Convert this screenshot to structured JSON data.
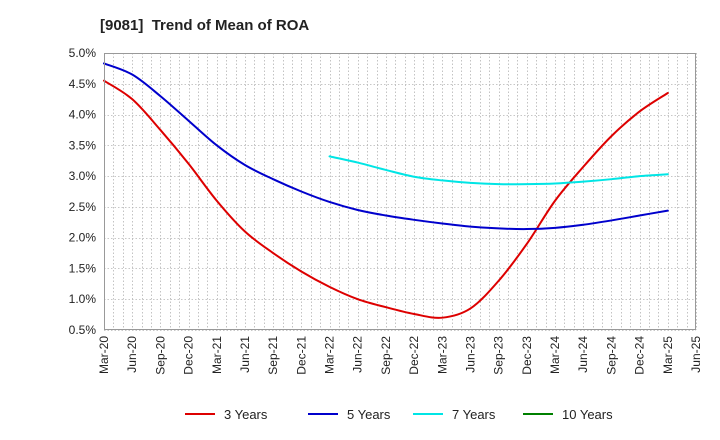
{
  "chart_data": {
    "type": "line",
    "title": "[9081]  Trend of Mean of ROA",
    "xlabel": "",
    "ylabel": "",
    "ylim": [
      0.5,
      5.0
    ],
    "yticks": [
      0.5,
      1.0,
      1.5,
      2.0,
      2.5,
      3.0,
      3.5,
      4.0,
      4.5,
      5.0
    ],
    "ytick_labels": [
      "0.5%",
      "1.0%",
      "1.5%",
      "2.0%",
      "2.5%",
      "3.0%",
      "3.5%",
      "4.0%",
      "4.5%",
      "5.0%"
    ],
    "x_start": "Mar-20",
    "x_end": "Jun-25",
    "categories": [
      "Mar-20",
      "Jun-20",
      "Sep-20",
      "Dec-20",
      "Mar-21",
      "Jun-21",
      "Sep-21",
      "Dec-21",
      "Mar-22",
      "Jun-22",
      "Sep-22",
      "Dec-22",
      "Mar-23",
      "Jun-23",
      "Sep-23",
      "Dec-23",
      "Mar-24",
      "Jun-24",
      "Sep-24",
      "Dec-24",
      "Mar-25",
      "Jun-25"
    ],
    "grid": true,
    "legend_position": "bottom",
    "series": [
      {
        "name": "3 Years",
        "color": "#dd0000",
        "x": [
          "Mar-20",
          "Jun-20",
          "Sep-20",
          "Dec-20",
          "Mar-21",
          "Jun-21",
          "Sep-21",
          "Dec-21",
          "Mar-22",
          "Jun-22",
          "Sep-22",
          "Dec-22",
          "Mar-23",
          "Jun-23",
          "Sep-23",
          "Dec-23",
          "Mar-24",
          "Jun-24",
          "Sep-24",
          "Dec-24",
          "Mar-25"
        ],
        "values": [
          4.55,
          4.25,
          3.75,
          3.2,
          2.6,
          2.1,
          1.75,
          1.45,
          1.2,
          1.0,
          0.87,
          0.76,
          0.7,
          0.85,
          1.3,
          1.9,
          2.6,
          3.15,
          3.65,
          4.05,
          4.35
        ]
      },
      {
        "name": "5 Years",
        "color": "#0000cc",
        "x": [
          "Mar-20",
          "Jun-20",
          "Sep-20",
          "Dec-20",
          "Mar-21",
          "Jun-21",
          "Sep-21",
          "Dec-21",
          "Mar-22",
          "Jun-22",
          "Sep-22",
          "Dec-22",
          "Mar-23",
          "Jun-23",
          "Sep-23",
          "Dec-23",
          "Mar-24",
          "Jun-24",
          "Sep-24",
          "Dec-24",
          "Mar-25"
        ],
        "values": [
          4.83,
          4.65,
          4.3,
          3.9,
          3.5,
          3.18,
          2.95,
          2.75,
          2.58,
          2.45,
          2.36,
          2.29,
          2.23,
          2.18,
          2.15,
          2.14,
          2.16,
          2.21,
          2.28,
          2.36,
          2.44
        ]
      },
      {
        "name": "7 Years",
        "color": "#00e5e5",
        "x": [
          "Mar-22",
          "Jun-22",
          "Sep-22",
          "Dec-22",
          "Mar-23",
          "Jun-23",
          "Sep-23",
          "Dec-23",
          "Mar-24",
          "Jun-24",
          "Sep-24",
          "Dec-24",
          "Mar-25"
        ],
        "values": [
          3.32,
          3.22,
          3.1,
          2.99,
          2.93,
          2.89,
          2.87,
          2.87,
          2.88,
          2.91,
          2.95,
          3.0,
          3.03
        ]
      },
      {
        "name": "10 Years",
        "color": "#008000",
        "x": [],
        "values": []
      }
    ]
  }
}
